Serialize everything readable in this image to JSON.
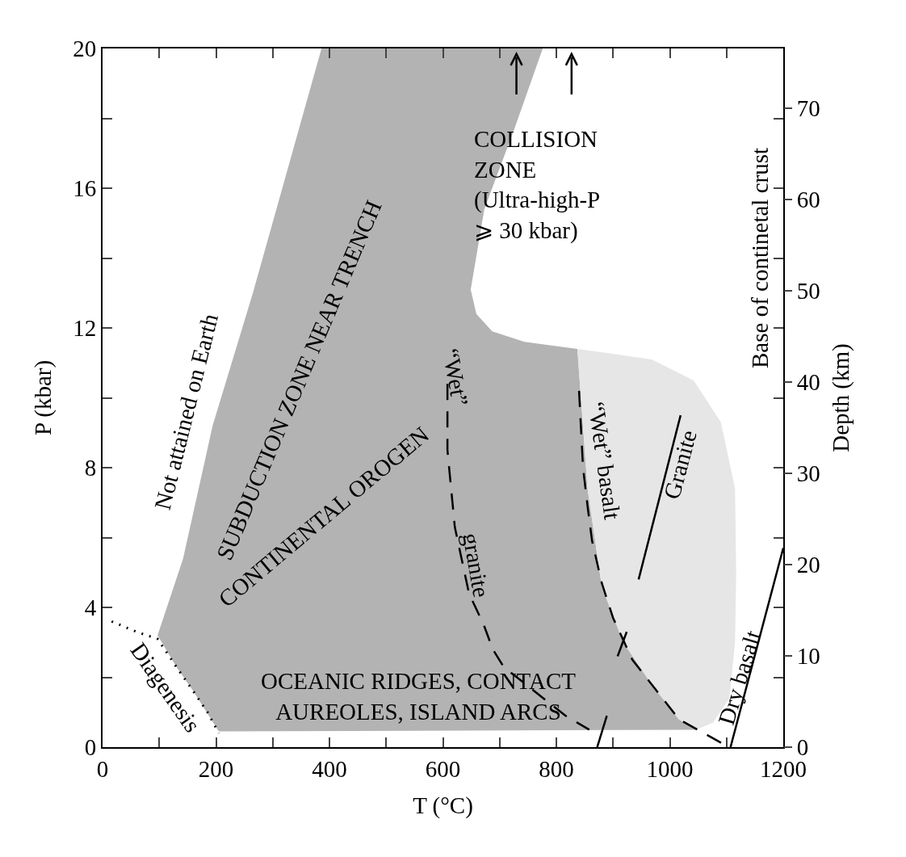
{
  "chart_data": {
    "type": "line",
    "xlabel": "T (°C)",
    "ylabel": "P (kbar)",
    "y2label": "Depth (km)",
    "xlim": [
      0,
      1200
    ],
    "ylim": [
      0,
      20
    ],
    "y2lim": [
      0,
      76.5
    ],
    "xticks": [
      0,
      {
        "value": 100,
        "label": null
      },
      200,
      {
        "value": 300,
        "label": null
      },
      400,
      {
        "value": 500,
        "label": null
      },
      600,
      {
        "value": 700,
        "label": null
      },
      800,
      {
        "value": 900,
        "label": null
      },
      1000,
      {
        "value": 1100,
        "label": null
      },
      1200
    ],
    "yticks": [
      0,
      {
        "value": 2,
        "label": null
      },
      4,
      {
        "value": 6,
        "label": null
      },
      8,
      {
        "value": 10,
        "label": null
      },
      12,
      {
        "value": 14,
        "label": null
      },
      16,
      {
        "value": 18,
        "label": null
      },
      20
    ],
    "y2ticks": [
      0,
      10,
      20,
      30,
      40,
      50,
      60,
      70
    ],
    "series": [
      {
        "type": "area",
        "color": "#b3b3b3",
        "x": [
          205,
          160,
          130,
          97,
          142,
          194,
          265,
          386,
          776,
          726,
          673,
          649,
          659,
          687,
          744,
          837,
          855,
          880,
          918,
          968,
          1016,
          1046,
          205
        ],
        "values": [
          0.45,
          1.6,
          2.3,
          3.2,
          5.4,
          9.2,
          13,
          20,
          20,
          17.7,
          15.4,
          13.1,
          12.4,
          11.9,
          11.6,
          11.4,
          7.4,
          4.6,
          3.0,
          1.8,
          0.8,
          0.5,
          0.45
        ]
      },
      {
        "type": "area",
        "color": "#e6e6e6",
        "x": [
          837,
          968,
          1042,
          1090,
          1115,
          1117,
          1115,
          1105,
          1076,
          1046,
          1016,
          968,
          918,
          880,
          855,
          837
        ],
        "values": [
          11.4,
          11.1,
          10.5,
          9.3,
          7.4,
          5.0,
          3.0,
          1.4,
          0.7,
          0.5,
          0.8,
          1.8,
          3.0,
          4.6,
          7.4,
          11.4
        ]
      },
      {
        "color": "#000000",
        "line_style": "dashed",
        "x": [
          608,
          608,
          621,
          646,
          672,
          688,
          707,
          816,
          858
        ],
        "values": [
          10.4,
          8.5,
          6.3,
          4.4,
          3.5,
          2.8,
          2.3,
          0.9,
          0.5
        ]
      },
      {
        "color": "#000000",
        "line_style": "dashed",
        "x": [
          840,
          847,
          855,
          863,
          880,
          900,
          934,
          1016,
          1093
        ],
        "values": [
          10.2,
          8.0,
          6.9,
          5.9,
          4.7,
          3.7,
          2.5,
          0.8,
          0.1
        ]
      },
      {
        "color": "#000000",
        "line_style": "solid",
        "x": [
          945,
          1019
        ],
        "values": [
          4.8,
          9.5
        ]
      },
      {
        "color": "#000000",
        "line_style": "solid",
        "x": [
          1107,
          1200
        ],
        "values": [
          0,
          5.7
        ]
      },
      {
        "color": "#000000",
        "line_style": "solid",
        "x": [
          872,
          889,
          null,
          908,
          924
        ],
        "values": [
          0,
          0.9,
          null,
          2.6,
          3.3
        ]
      },
      {
        "color": "#000000",
        "line_style": "dotted",
        "x": [
          16,
          60,
          97,
          130,
          160,
          185,
          205
        ],
        "values": [
          3.6,
          3.3,
          3.1,
          2.3,
          1.6,
          1.0,
          0.4
        ]
      }
    ],
    "annotations": [
      "Not attained on Earth",
      "SUBDUCTION ZONE NEAR TRENCH",
      "CONTINENTAL OROGEN",
      "“Wet”",
      "granite",
      "“Wet” basalt",
      "Granite",
      "Dry basalt",
      "Diagenesis",
      "OCEANIC RIDGES, CONTACT\nAUREOLES, ISLAND ARCS",
      "COLLISION\nZONE\n(Ultra-high-P\n⩾ 30 kbar)",
      "Base of continetal crust"
    ]
  }
}
